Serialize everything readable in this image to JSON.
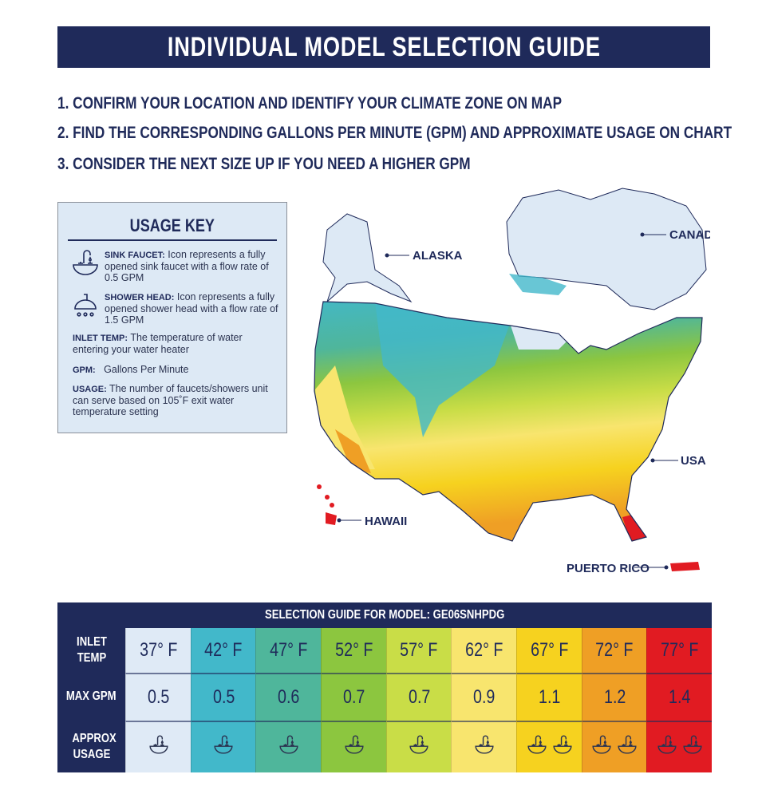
{
  "title": "INDIVIDUAL MODEL SELECTION GUIDE",
  "steps": [
    "1. CONFIRM YOUR LOCATION AND IDENTIFY YOUR CLIMATE ZONE ON MAP",
    "2. FIND THE CORRESPONDING GALLONS PER MINUTE (GPM) AND APPROXIMATE USAGE ON CHART",
    "3. CONSIDER THE NEXT SIZE UP IF YOU NEED A HIGHER GPM"
  ],
  "usage_key": {
    "title": "USAGE KEY",
    "items": [
      {
        "term": "SINK FAUCET:",
        "text": "Icon represents a fully opened sink faucet with a flow rate of 0.5 GPM",
        "icon": "sink-faucet-icon"
      },
      {
        "term": "SHOWER HEAD:",
        "text": "Icon represents a fully opened shower head with a flow rate of 1.5 GPM",
        "icon": "shower-head-icon"
      },
      {
        "term": "INLET TEMP:",
        "text": "The temperature of water entering your water heater"
      },
      {
        "term": "GPM:",
        "text": "Gallons Per Minute"
      },
      {
        "term": "USAGE:",
        "text": "The number of faucets/showers unit can serve based on 105˚F exit water temperature setting"
      }
    ]
  },
  "map": {
    "labels": {
      "alaska": "ALASKA",
      "canada": "CANADA",
      "usa": "USA",
      "hawaii": "HAWAII",
      "puerto_rico": "PUERTO RICO"
    }
  },
  "table": {
    "header": "SELECTION GUIDE FOR MODEL: GE06SNHPDG",
    "row_labels": {
      "inlet": "INLET TEMP",
      "gpm": "MAX GPM",
      "usage": "APPROX USAGE"
    },
    "columns": [
      {
        "temp": "37° F",
        "gpm": "0.5",
        "usage": 1,
        "color": "#dfeaf6"
      },
      {
        "temp": "42° F",
        "gpm": "0.5",
        "usage": 1,
        "color": "#42b8ca"
      },
      {
        "temp": "47° F",
        "gpm": "0.6",
        "usage": 1,
        "color": "#4fb69b"
      },
      {
        "temp": "52° F",
        "gpm": "0.7",
        "usage": 1,
        "color": "#8cc63f"
      },
      {
        "temp": "57° F",
        "gpm": "0.7",
        "usage": 1,
        "color": "#c9dd47"
      },
      {
        "temp": "62° F",
        "gpm": "0.9",
        "usage": 1,
        "color": "#f8e56e"
      },
      {
        "temp": "67° F",
        "gpm": "1.1",
        "usage": 2,
        "color": "#f6d21f"
      },
      {
        "temp": "72° F",
        "gpm": "1.2",
        "usage": 2,
        "color": "#ef9f25"
      },
      {
        "temp": "77° F",
        "gpm": "1.4",
        "usage": 2,
        "color": "#e11b22"
      }
    ],
    "usage_icon": "sink-faucet-icon"
  }
}
